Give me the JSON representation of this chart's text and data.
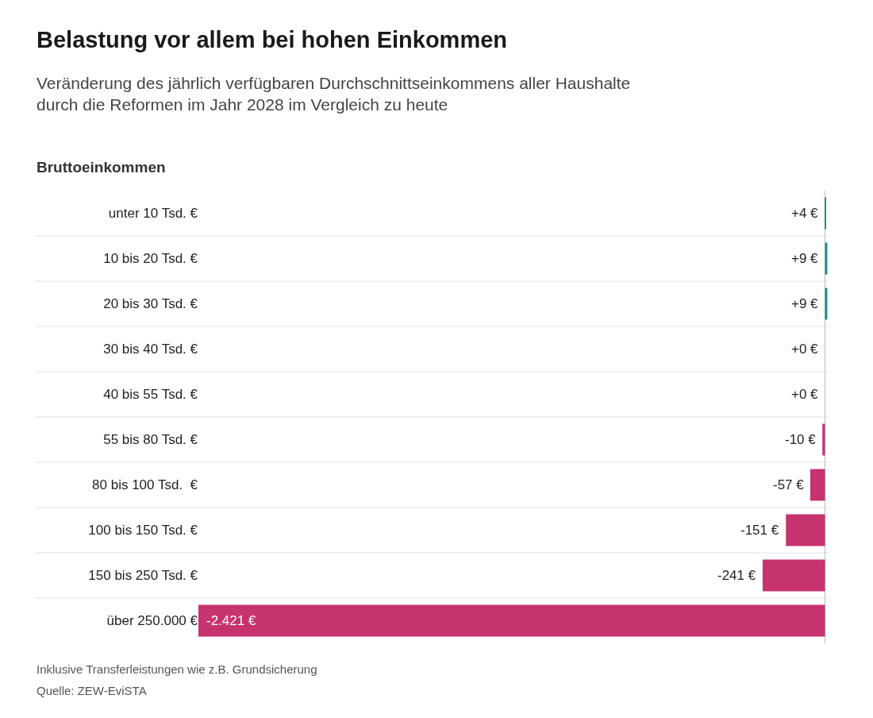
{
  "chart_data": {
    "type": "bar",
    "orientation": "horizontal",
    "title": "Belastung vor allem bei hohen Einkommen",
    "subtitle": "Veränderung des jährlich verfügbaren Durchschnittseinkommens aller Haushalte\ndurch die Reformen im Jahr 2028 im Vergleich zu heute",
    "ylabel": "Bruttoeinkommen",
    "categories": [
      "unter 10 Tsd. €",
      "10 bis 20 Tsd. €",
      "20 bis 30 Tsd. €",
      "30 bis 40 Tsd. €",
      "40 bis 55 Tsd. €",
      "55 bis 80 Tsd. €",
      "80 bis 100 Tsd.  €",
      "100 bis 150 Tsd. €",
      "150 bis 250 Tsd. €",
      "über 250.000 €"
    ],
    "values": [
      4,
      9,
      9,
      0,
      0,
      -10,
      -57,
      -151,
      -241,
      -2421
    ],
    "colors": [
      "#1f8a85",
      "#1f8a85",
      "#1f8a85",
      "#1f8a85",
      "#1f8a85",
      "#c7336f",
      "#c7336f",
      "#c7336f",
      "#c7336f",
      "#c7336f"
    ],
    "value_labels": [
      "+4 €",
      "+9 €",
      "+9 €",
      "+0 €",
      "+0 €",
      "-10 €",
      "-57 €",
      "-151 €",
      "-241 €",
      "-2.421 €"
    ],
    "grid": "y",
    "annotations": [
      "Inklusive Transferleistungen wie z.B. Grundsicherung",
      "Quelle: ZEW-EviSTA"
    ]
  }
}
